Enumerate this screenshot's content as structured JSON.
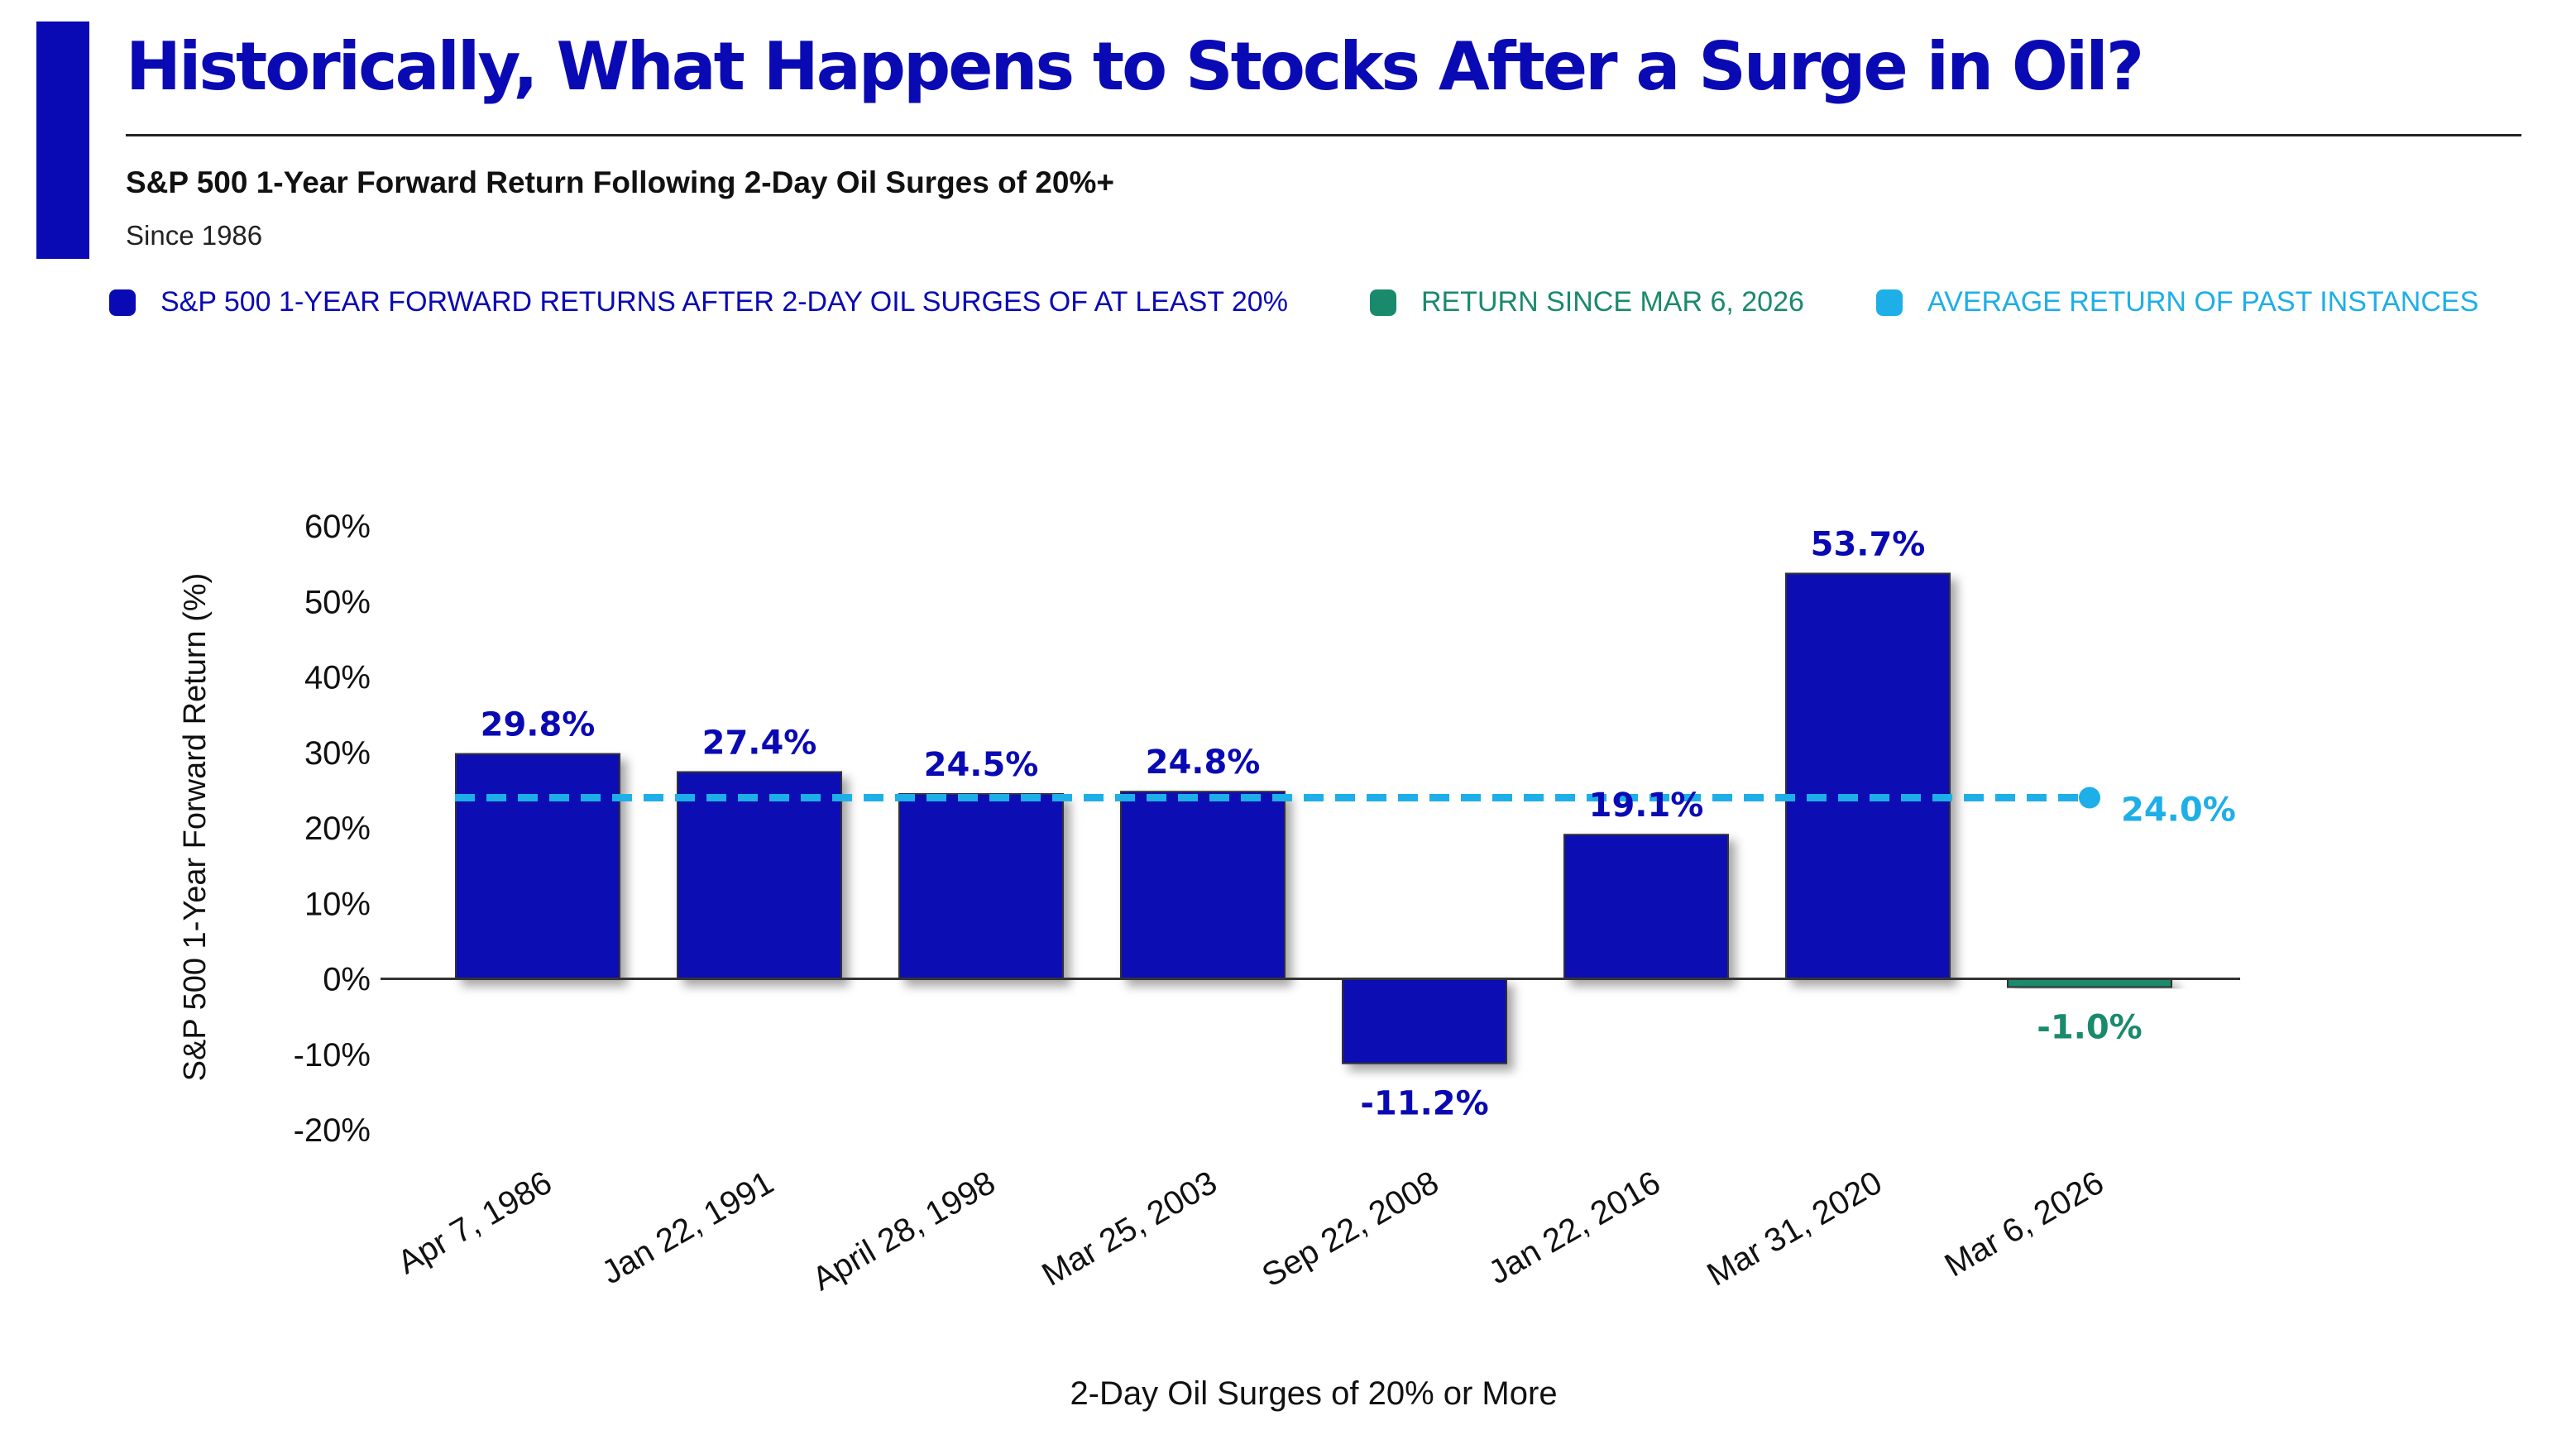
{
  "title": "Historically, What Happens to Stocks After a Surge in Oil?",
  "subtitle": "S&P 500 1-Year Forward Return Following 2-Day Oil Surges of 20%+",
  "since": "Since 1986",
  "colors": {
    "brand_blue": "#0a0ab4",
    "green": "#1a8a6c",
    "light_blue": "#1eaee8",
    "text": "#111111"
  },
  "legend": [
    {
      "label": "S&P 500 1-YEAR FORWARD RETURNS AFTER 2-DAY OIL SURGES OF AT LEAST 20%",
      "color": "#0a0ab4"
    },
    {
      "label": "RETURN SINCE MAR 6, 2026",
      "color": "#1a8a6c"
    },
    {
      "label": "AVERAGE RETURN OF PAST INSTANCES",
      "color": "#1eaee8"
    }
  ],
  "chart_data": {
    "type": "bar",
    "categories": [
      "Apr 7, 1986",
      "Jan 22, 1991",
      "April 28, 1998",
      "Mar 25, 2003",
      "Sep 22, 2008",
      "Jan 22, 2016",
      "Mar 31, 2020",
      "Mar 6, 2026"
    ],
    "values": [
      29.8,
      27.4,
      24.5,
      24.8,
      -11.2,
      19.1,
      53.7,
      -1.0
    ],
    "value_labels": [
      "29.8%",
      "27.4%",
      "24.5%",
      "24.8%",
      "-11.2%",
      "19.1%",
      "53.7%",
      "-1.0%"
    ],
    "highlight_index": 7,
    "average": 24.0,
    "average_label": "24.0%",
    "ylabel": "S&P 500 1-Year Forward Return (%)",
    "xlabel": "2-Day Oil Surges of 20% or More",
    "ylim": [
      -20,
      60
    ],
    "yticks": [
      60,
      50,
      40,
      30,
      20,
      10,
      0,
      -10,
      -20
    ],
    "ytick_labels": [
      "60%",
      "50%",
      "40%",
      "30%",
      "20%",
      "10%",
      "0%",
      "-10%",
      "-20%"
    ],
    "grid": false
  }
}
